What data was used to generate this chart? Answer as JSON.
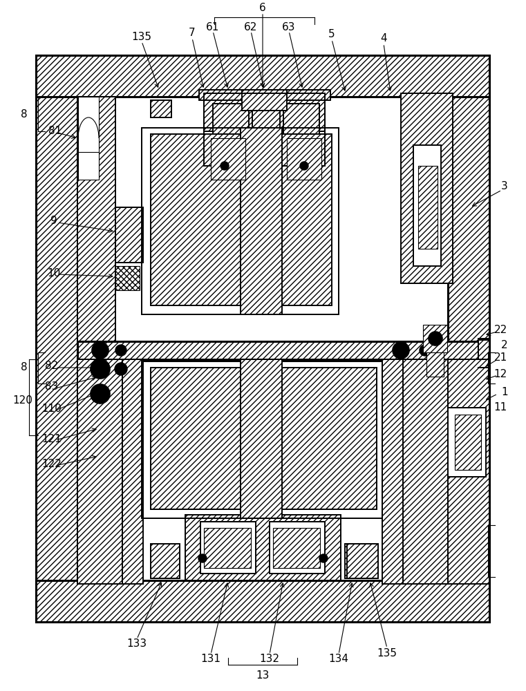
{
  "bg_color": "#ffffff",
  "line_color": "#000000",
  "fig_width": 7.61,
  "fig_height": 10.0,
  "dpi": 100
}
